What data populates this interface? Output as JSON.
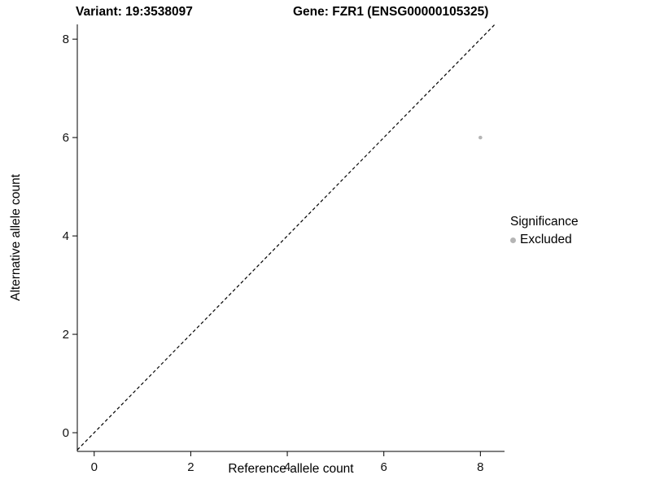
{
  "chart_data": {
    "type": "scatter",
    "title_left": "Variant: 19:3538097",
    "title_right": "Gene: FZR1 (ENSG00000105325)",
    "xlabel": "Reference allele count",
    "ylabel": "Alternative allele count",
    "xlim": [
      -0.35,
      8.5
    ],
    "ylim": [
      -0.38,
      8.3
    ],
    "xticks": [
      0,
      2,
      4,
      6,
      8
    ],
    "yticks": [
      0,
      2,
      4,
      6,
      8
    ],
    "grid": false,
    "background": "#ffffff",
    "axis_color": "#000000",
    "identity_line": {
      "slope": 1,
      "intercept": 0,
      "style": "dashed",
      "color": "#000000"
    },
    "points": [
      {
        "x": 8,
        "y": 6,
        "series": "Excluded"
      }
    ],
    "legend": {
      "position": "right",
      "title": "Significance",
      "items": [
        {
          "label": "Excluded",
          "color": "#b5b5b5"
        }
      ]
    }
  }
}
